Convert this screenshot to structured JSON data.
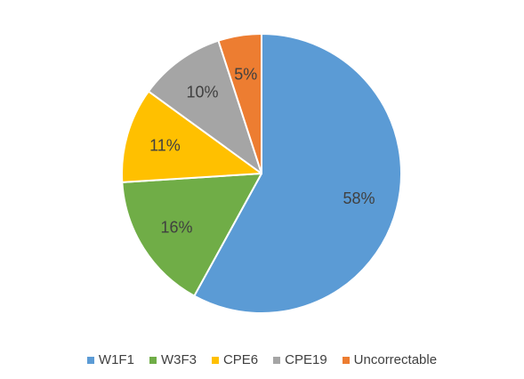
{
  "chart_data": {
    "type": "pie",
    "title": "",
    "categories": [
      "W1F1",
      "W3F3",
      "CPE6",
      "CPE19",
      "Uncorrectable"
    ],
    "values": [
      58,
      16,
      11,
      10,
      5
    ],
    "value_labels": [
      "58%",
      "16%",
      "11%",
      "10%",
      "5%"
    ],
    "colors": [
      "#5B9BD5",
      "#70AD47",
      "#FFC000",
      "#A5A5A5",
      "#ED7D31"
    ],
    "start_angle_deg": 0,
    "direction": "clockwise",
    "slice_border_color": "#ffffff",
    "legend_position": "bottom"
  }
}
